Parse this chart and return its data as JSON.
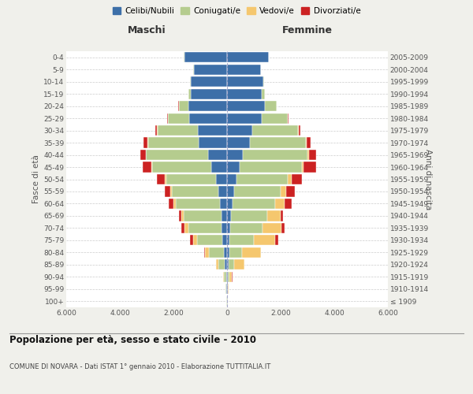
{
  "age_groups": [
    "100+",
    "95-99",
    "90-94",
    "85-89",
    "80-84",
    "75-79",
    "70-74",
    "65-69",
    "60-64",
    "55-59",
    "50-54",
    "45-49",
    "40-44",
    "35-39",
    "30-34",
    "25-29",
    "20-24",
    "15-19",
    "10-14",
    "5-9",
    "0-4"
  ],
  "birth_years": [
    "≤ 1909",
    "1910-1914",
    "1915-1919",
    "1920-1924",
    "1925-1929",
    "1930-1934",
    "1935-1939",
    "1940-1944",
    "1945-1949",
    "1950-1954",
    "1955-1959",
    "1960-1964",
    "1965-1969",
    "1970-1974",
    "1975-1979",
    "1980-1984",
    "1985-1989",
    "1990-1994",
    "1995-1999",
    "2000-2004",
    "2005-2009"
  ],
  "males": {
    "celibi": [
      10,
      20,
      40,
      80,
      130,
      170,
      200,
      220,
      260,
      320,
      420,
      580,
      720,
      1050,
      1100,
      1400,
      1450,
      1350,
      1350,
      1250,
      1600
    ],
    "coniugati": [
      10,
      30,
      80,
      250,
      550,
      950,
      1250,
      1400,
      1650,
      1750,
      1850,
      2200,
      2300,
      1900,
      1500,
      800,
      350,
      80,
      30,
      10,
      10
    ],
    "vedovi": [
      2,
      5,
      20,
      80,
      150,
      150,
      130,
      100,
      80,
      60,
      50,
      30,
      20,
      10,
      5,
      5,
      5,
      2,
      2,
      1,
      1
    ],
    "divorziati": [
      0,
      0,
      2,
      5,
      10,
      100,
      120,
      80,
      200,
      200,
      300,
      350,
      200,
      150,
      80,
      20,
      10,
      5,
      2,
      1,
      1
    ]
  },
  "females": {
    "nubili": [
      10,
      15,
      30,
      50,
      80,
      100,
      130,
      160,
      200,
      250,
      350,
      480,
      600,
      850,
      950,
      1300,
      1400,
      1300,
      1350,
      1250,
      1550
    ],
    "coniugate": [
      10,
      25,
      60,
      200,
      480,
      900,
      1200,
      1350,
      1600,
      1750,
      1900,
      2300,
      2400,
      2100,
      1700,
      950,
      450,
      100,
      40,
      15,
      10
    ],
    "vedove": [
      5,
      20,
      100,
      400,
      700,
      800,
      700,
      500,
      350,
      220,
      150,
      80,
      50,
      30,
      15,
      10,
      5,
      3,
      2,
      1,
      1
    ],
    "divorziate": [
      0,
      0,
      2,
      5,
      15,
      100,
      130,
      90,
      250,
      300,
      400,
      450,
      280,
      150,
      80,
      25,
      10,
      5,
      2,
      1,
      1
    ]
  },
  "colors": {
    "celibi": "#3d6fa8",
    "coniugati": "#b5cc8e",
    "vedovi": "#f5c76e",
    "divorziati": "#cc2222"
  },
  "xlim": 6000,
  "title": "Popolazione per età, sesso e stato civile - 2010",
  "subtitle": "COMUNE DI NOVARA - Dati ISTAT 1° gennaio 2010 - Elaborazione TUTTITALIA.IT",
  "ylabel_left": "Fasce di età",
  "ylabel_right": "Anni di nascita",
  "xlabel_left": "Maschi",
  "xlabel_right": "Femmine",
  "bg_color": "#f0f0eb",
  "plot_bg": "#ffffff"
}
